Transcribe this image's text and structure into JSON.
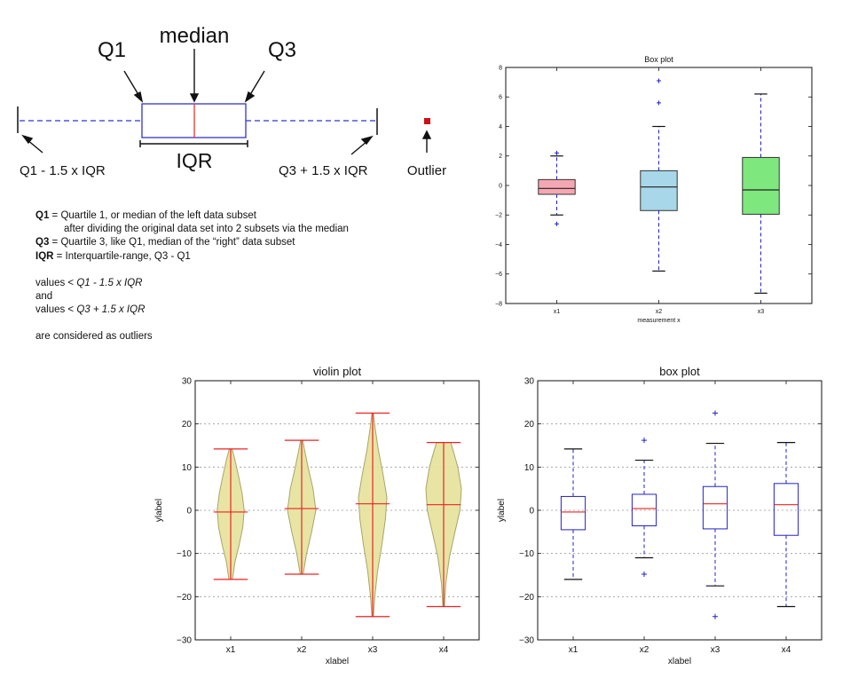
{
  "diagram": {
    "q1_label": "Q1",
    "median_label": "median",
    "q3_label": "Q3",
    "iqr_label": "IQR",
    "lower_fence_label": "Q1 - 1.5 x IQR",
    "upper_fence_label": "Q3 + 1.5 x IQR",
    "outlier_label": "Outlier",
    "colors": {
      "box": "#3333cc",
      "median": "#ee3333",
      "outlier": "#cc1111"
    }
  },
  "notes": {
    "q1_term": "Q1",
    "q1_def": " = Quartile 1, or median of the left data subset",
    "q1_def_cont": "after dividing the original  data set into 2 subsets via the median",
    "q3_term": "Q3",
    "q3_def": " = Quartile 3, like Q1, median of the “right” data subset",
    "iqr_term": "IQR",
    "iqr_def": " = Interquartile-range, Q3 - Q1",
    "values_lt": "values < ",
    "lower_expr": "Q1 - 1.5 x IQR",
    "and": "and",
    "upper_expr": "Q3 + 1.5 x IQR",
    "conclusion": "are considered as outliers"
  },
  "chart_data": [
    {
      "type": "box",
      "title": "Box plot",
      "xlabel": "measurement x",
      "ylabel": "",
      "categories": [
        "x1",
        "x2",
        "x3"
      ],
      "ylim": [
        -8,
        8
      ],
      "yticks": [
        -8,
        -6,
        -4,
        -2,
        0,
        2,
        4,
        6,
        8
      ],
      "grid": false,
      "boxes": [
        {
          "q1": -0.6,
          "median": -0.2,
          "q3": 0.4,
          "whisker_low": -2.0,
          "whisker_high": 2.0,
          "fliers": [
            2.2,
            -2.6
          ],
          "color": "#f4a7b2"
        },
        {
          "q1": -1.7,
          "median": -0.1,
          "q3": 1.0,
          "whisker_low": -5.8,
          "whisker_high": 4.0,
          "fliers": [
            7.1,
            5.6
          ],
          "color": "#a7d7e8"
        },
        {
          "q1": -1.95,
          "median": -0.3,
          "q3": 1.9,
          "whisker_low": -7.3,
          "whisker_high": 6.2,
          "fliers": [],
          "color": "#7ee87e"
        }
      ]
    },
    {
      "type": "violin",
      "title": "violin plot",
      "xlabel": "xlabel",
      "ylabel": "ylabel",
      "categories": [
        "x1",
        "x2",
        "x3",
        "x4"
      ],
      "ylim": [
        -30,
        30
      ],
      "yticks": [
        -30,
        -20,
        -10,
        0,
        10,
        20,
        30
      ],
      "ytick_labels": [
        "−30",
        "−20",
        "−10",
        "0",
        "10",
        "20",
        "30"
      ],
      "grid": true,
      "fill_color": "#e6e29a",
      "line_color": "#ee2222",
      "violins": [
        {
          "min": -16.0,
          "max": 14.2,
          "mean": -0.4,
          "profile": [
            [
              -16,
              0.05
            ],
            [
              -12,
              0.12
            ],
            [
              -8,
              0.24
            ],
            [
              -4,
              0.34
            ],
            [
              0,
              0.38
            ],
            [
              4,
              0.32
            ],
            [
              8,
              0.22
            ],
            [
              12,
              0.11
            ],
            [
              14.2,
              0.04
            ]
          ]
        },
        {
          "min": -14.8,
          "max": 16.2,
          "mean": 0.4,
          "profile": [
            [
              -14.8,
              0.04
            ],
            [
              -10,
              0.14
            ],
            [
              -5,
              0.28
            ],
            [
              0,
              0.4
            ],
            [
              5,
              0.32
            ],
            [
              10,
              0.18
            ],
            [
              14,
              0.08
            ],
            [
              16.2,
              0.03
            ]
          ]
        },
        {
          "min": -24.6,
          "max": 22.5,
          "mean": 1.5,
          "profile": [
            [
              -24.6,
              0.02
            ],
            [
              -20,
              0.06
            ],
            [
              -14,
              0.14
            ],
            [
              -8,
              0.26
            ],
            [
              -2,
              0.36
            ],
            [
              3,
              0.4
            ],
            [
              8,
              0.3
            ],
            [
              14,
              0.16
            ],
            [
              19,
              0.07
            ],
            [
              22.5,
              0.02
            ]
          ]
        },
        {
          "min": -22.3,
          "max": 15.7,
          "mean": 1.3,
          "profile": [
            [
              -22.3,
              0.02
            ],
            [
              -17,
              0.06
            ],
            [
              -11,
              0.16
            ],
            [
              -5,
              0.32
            ],
            [
              0,
              0.46
            ],
            [
              5,
              0.5
            ],
            [
              10,
              0.4
            ],
            [
              13.5,
              0.28
            ],
            [
              15.7,
              0.2
            ]
          ]
        }
      ]
    },
    {
      "type": "box",
      "title": "box plot",
      "xlabel": "xlabel",
      "ylabel": "ylabel",
      "categories": [
        "x1",
        "x2",
        "x3",
        "x4"
      ],
      "ylim": [
        -30,
        30
      ],
      "yticks": [
        -30,
        -20,
        -10,
        0,
        10,
        20,
        30
      ],
      "ytick_labels": [
        "−30",
        "−20",
        "−10",
        "0",
        "10",
        "20",
        "30"
      ],
      "grid": true,
      "boxes": [
        {
          "q1": -4.5,
          "median": -0.4,
          "q3": 3.2,
          "whisker_low": -16.0,
          "whisker_high": 14.2,
          "fliers": []
        },
        {
          "q1": -3.6,
          "median": 0.4,
          "q3": 3.7,
          "whisker_low": -11.0,
          "whisker_high": 11.6,
          "fliers": [
            16.2,
            -14.8
          ]
        },
        {
          "q1": -4.3,
          "median": 1.5,
          "q3": 5.5,
          "whisker_low": -17.5,
          "whisker_high": 15.5,
          "fliers": [
            22.5,
            -24.6
          ]
        },
        {
          "q1": -5.8,
          "median": 1.3,
          "q3": 6.2,
          "whisker_low": -22.3,
          "whisker_high": 15.7,
          "fliers": []
        }
      ]
    }
  ]
}
